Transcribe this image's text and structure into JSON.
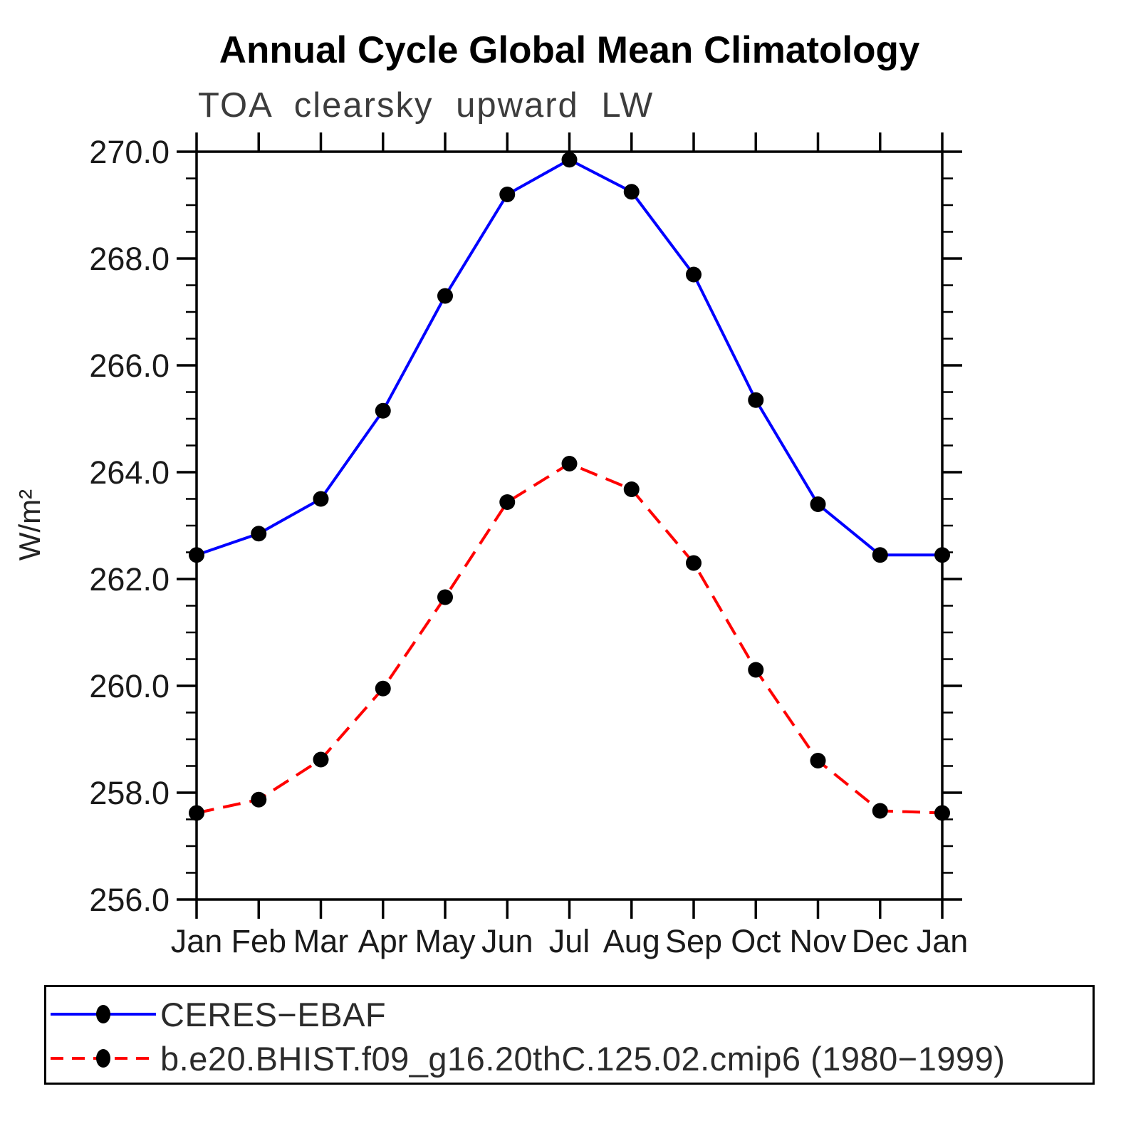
{
  "header": {
    "title": "Annual Cycle Global Mean Climatology",
    "subtitle": "TOA clearsky upward LW"
  },
  "chart_data": {
    "type": "line",
    "title": "Annual Cycle Global Mean Climatology",
    "subtitle": "TOA clearsky upward LW",
    "xlabel": "",
    "ylabel": "W/m²",
    "ylim": [
      256.0,
      270.0
    ],
    "y_major_tick_step": 2.0,
    "y_minor_tick_step": 0.5,
    "y_tick_labels": [
      "270.0",
      "268.0",
      "266.0",
      "264.0",
      "262.0",
      "260.0",
      "258.0",
      "256.0"
    ],
    "grid": false,
    "legend_position": "bottom-box",
    "axis_color": "#000000",
    "marker_color": "#000000",
    "categories": [
      "Jan",
      "Feb",
      "Mar",
      "Apr",
      "May",
      "Jun",
      "Jul",
      "Aug",
      "Sep",
      "Oct",
      "Nov",
      "Dec",
      "Jan"
    ],
    "series": [
      {
        "name": "CERES−EBAF",
        "color": "#0000ff",
        "line_style": "solid",
        "marker": "filled-black-dot",
        "values": [
          262.45,
          262.85,
          263.5,
          265.15,
          267.3,
          269.2,
          269.85,
          269.25,
          267.7,
          265.35,
          263.4,
          262.45,
          262.45
        ]
      },
      {
        "name": "b.e20.BHIST.f09_g16.20thC.125.02.cmip6 (1980−1999)",
        "color": "#ff0000",
        "line_style": "dashed",
        "marker": "filled-black-dot",
        "values": [
          257.62,
          257.87,
          258.62,
          259.95,
          261.66,
          263.44,
          264.16,
          263.68,
          262.3,
          260.3,
          258.6,
          257.66,
          257.62
        ]
      }
    ]
  },
  "legend": {
    "items": [
      {
        "label": "CERES−EBAF"
      },
      {
        "label": "b.e20.BHIST.f09_g16.20thC.125.02.cmip6 (1980−1999)"
      }
    ]
  }
}
